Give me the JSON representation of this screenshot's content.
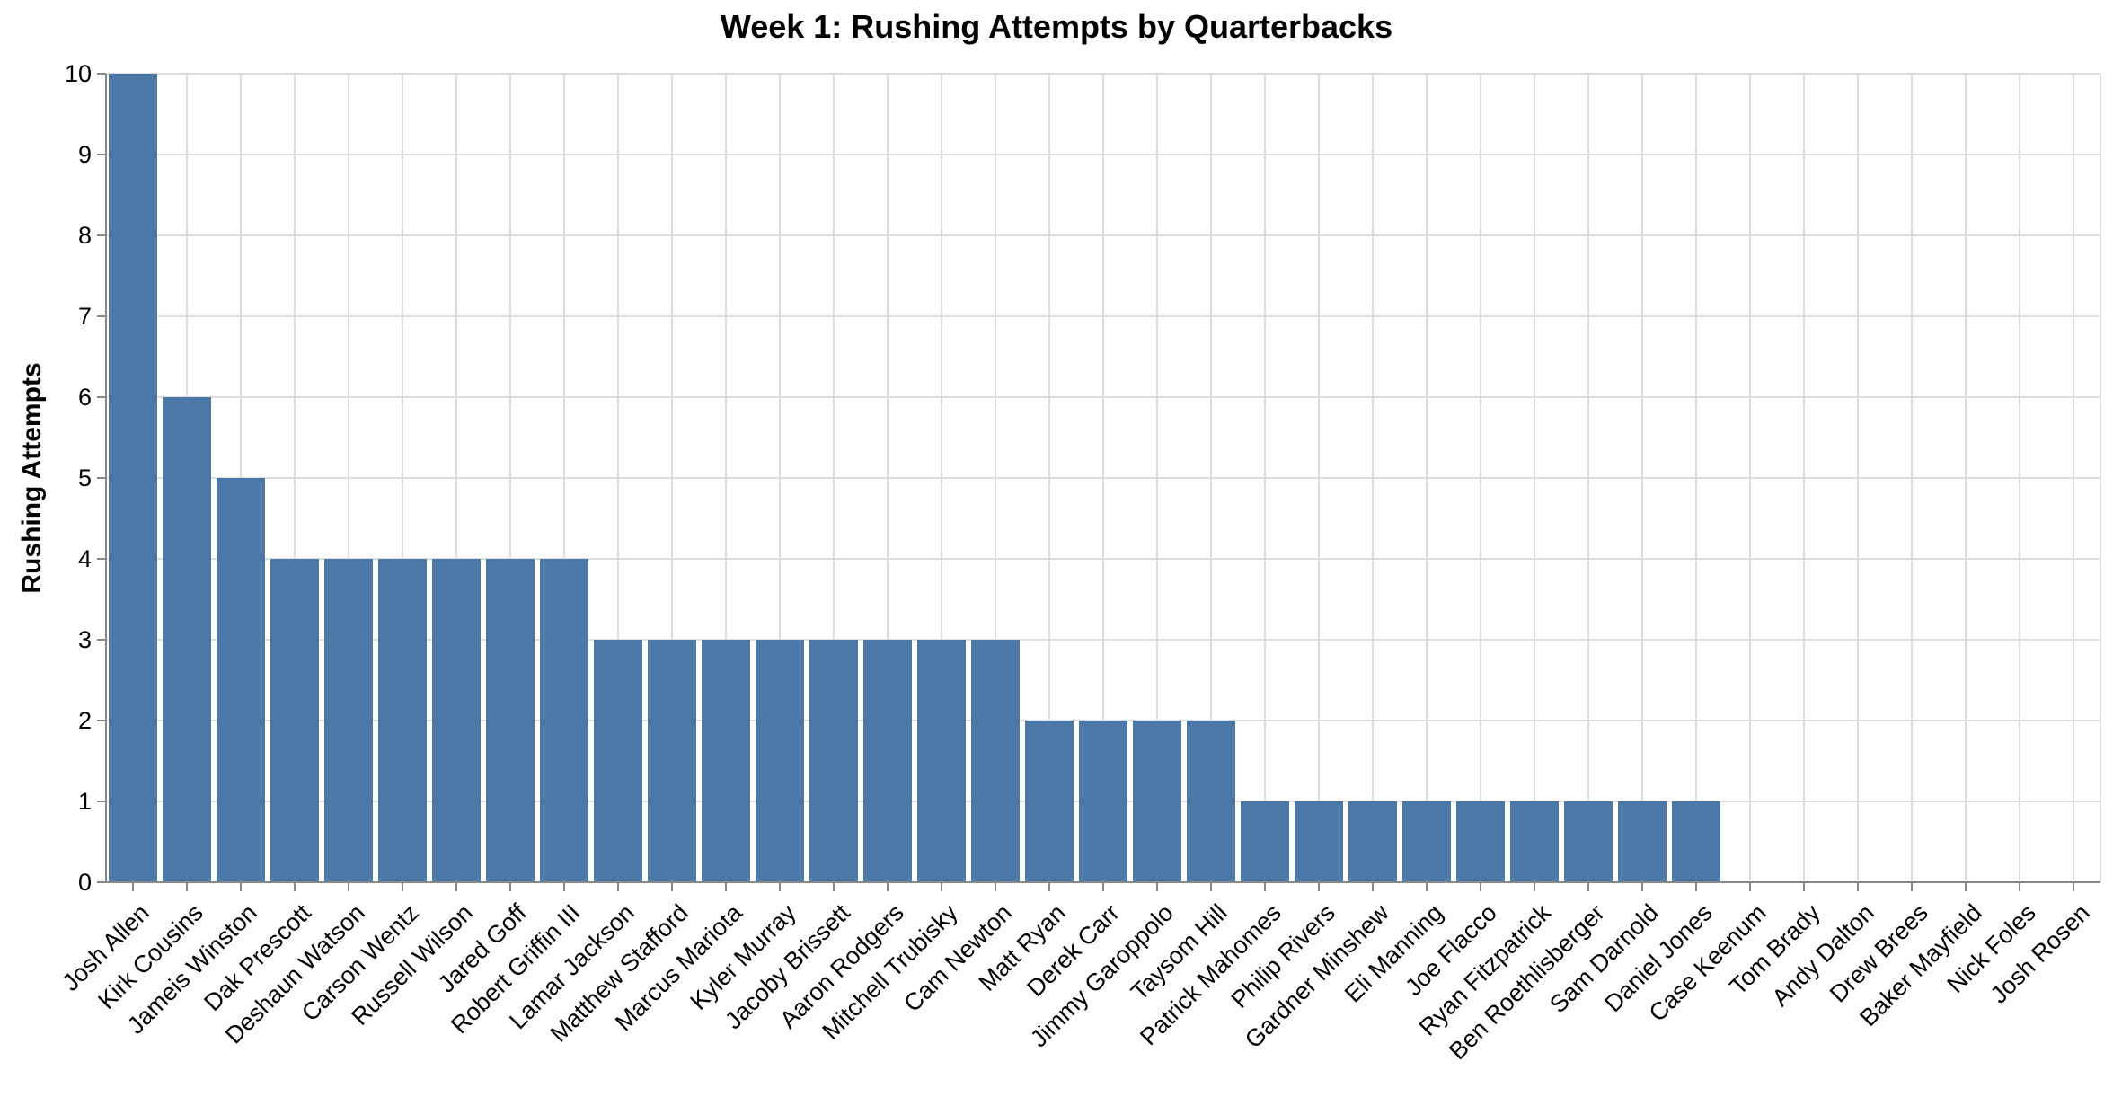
{
  "chart_data": {
    "type": "bar",
    "title": "Week 1: Rushing Attempts by Quarterbacks",
    "xlabel": "",
    "ylabel": "Rushing Attempts",
    "ylim": [
      0,
      10
    ],
    "yticks": [
      0,
      1,
      2,
      3,
      4,
      5,
      6,
      7,
      8,
      9,
      10
    ],
    "grid": true,
    "bar_color": "#4c78a8",
    "categories": [
      "Josh Allen",
      "Kirk Cousins",
      "Jameis Winston",
      "Dak Prescott",
      "Deshaun Watson",
      "Carson Wentz",
      "Russell Wilson",
      "Jared Goff",
      "Robert Griffin III",
      "Lamar Jackson",
      "Matthew Stafford",
      "Marcus Mariota",
      "Kyler Murray",
      "Jacoby Brissett",
      "Aaron Rodgers",
      "Mitchell Trubisky",
      "Cam Newton",
      "Matt Ryan",
      "Derek Carr",
      "Jimmy Garoppolo",
      "Taysom Hill",
      "Patrick Mahomes",
      "Philip Rivers",
      "Gardner Minshew",
      "Eli Manning",
      "Joe Flacco",
      "Ryan Fitzpatrick",
      "Ben Roethlisberger",
      "Sam Darnold",
      "Daniel Jones",
      "Case Keenum",
      "Tom Brady",
      "Andy Dalton",
      "Drew Brees",
      "Baker Mayfield",
      "Nick Foles",
      "Josh Rosen"
    ],
    "values": [
      10,
      6,
      5,
      4,
      4,
      4,
      4,
      4,
      4,
      3,
      3,
      3,
      3,
      3,
      3,
      3,
      3,
      2,
      2,
      2,
      2,
      1,
      1,
      1,
      1,
      1,
      1,
      1,
      1,
      1,
      0,
      0,
      0,
      0,
      0,
      0,
      0
    ]
  }
}
